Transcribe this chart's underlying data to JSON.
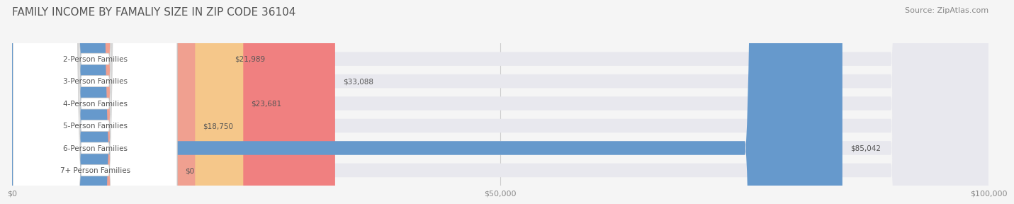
{
  "title": "FAMILY INCOME BY FAMALIY SIZE IN ZIP CODE 36104",
  "source": "Source: ZipAtlas.com",
  "categories": [
    "2-Person Families",
    "3-Person Families",
    "4-Person Families",
    "5-Person Families",
    "6-Person Families",
    "7+ Person Families"
  ],
  "values": [
    21989,
    33088,
    23681,
    18750,
    85042,
    0
  ],
  "bar_colors": [
    "#a8a8d8",
    "#f08080",
    "#f5c78a",
    "#f0a090",
    "#6699cc",
    "#c8b8d8"
  ],
  "bar_bg_color": "#e8e8ee",
  "label_text_color": "#555555",
  "value_text_color": "#555555",
  "xlim": [
    0,
    100000
  ],
  "xticks": [
    0,
    50000,
    100000
  ],
  "xtick_labels": [
    "$0",
    "$50,000",
    "$100,000"
  ],
  "bg_color": "#f5f5f5",
  "title_color": "#555555",
  "title_fontsize": 11,
  "source_fontsize": 8
}
